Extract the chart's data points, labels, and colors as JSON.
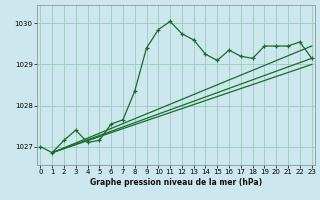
{
  "title": "Graphe pression niveau de la mer (hPa)",
  "bg_color": "#cce8ee",
  "grid_color": "#99ccbb",
  "line_color": "#1a6b2a",
  "x_ticks": [
    0,
    1,
    2,
    3,
    4,
    5,
    6,
    7,
    8,
    9,
    10,
    11,
    12,
    13,
    14,
    15,
    16,
    17,
    18,
    19,
    20,
    21,
    22,
    23
  ],
  "y_ticks": [
    1027,
    1028,
    1029,
    1030
  ],
  "ylim": [
    1026.55,
    1030.45
  ],
  "xlim": [
    -0.3,
    23.3
  ],
  "series1_x": [
    0,
    1,
    2,
    3,
    4,
    5,
    6,
    7,
    8,
    9,
    10,
    11,
    12,
    13,
    14,
    15,
    16,
    17,
    18,
    19,
    20,
    21,
    22,
    23
  ],
  "series1_y": [
    1027.0,
    1026.85,
    1027.15,
    1027.4,
    1027.1,
    1027.15,
    1027.55,
    1027.65,
    1028.35,
    1029.4,
    1029.85,
    1030.05,
    1029.75,
    1029.6,
    1029.25,
    1029.1,
    1029.35,
    1029.2,
    1029.15,
    1029.45,
    1029.45,
    1029.45,
    1029.55,
    1029.15
  ],
  "series2_x": [
    1,
    23
  ],
  "series2_y": [
    1026.85,
    1029.15
  ],
  "series3_x": [
    1,
    23
  ],
  "series3_y": [
    1026.85,
    1029.45
  ],
  "series4_x": [
    1,
    23
  ],
  "series4_y": [
    1026.85,
    1029.0
  ]
}
